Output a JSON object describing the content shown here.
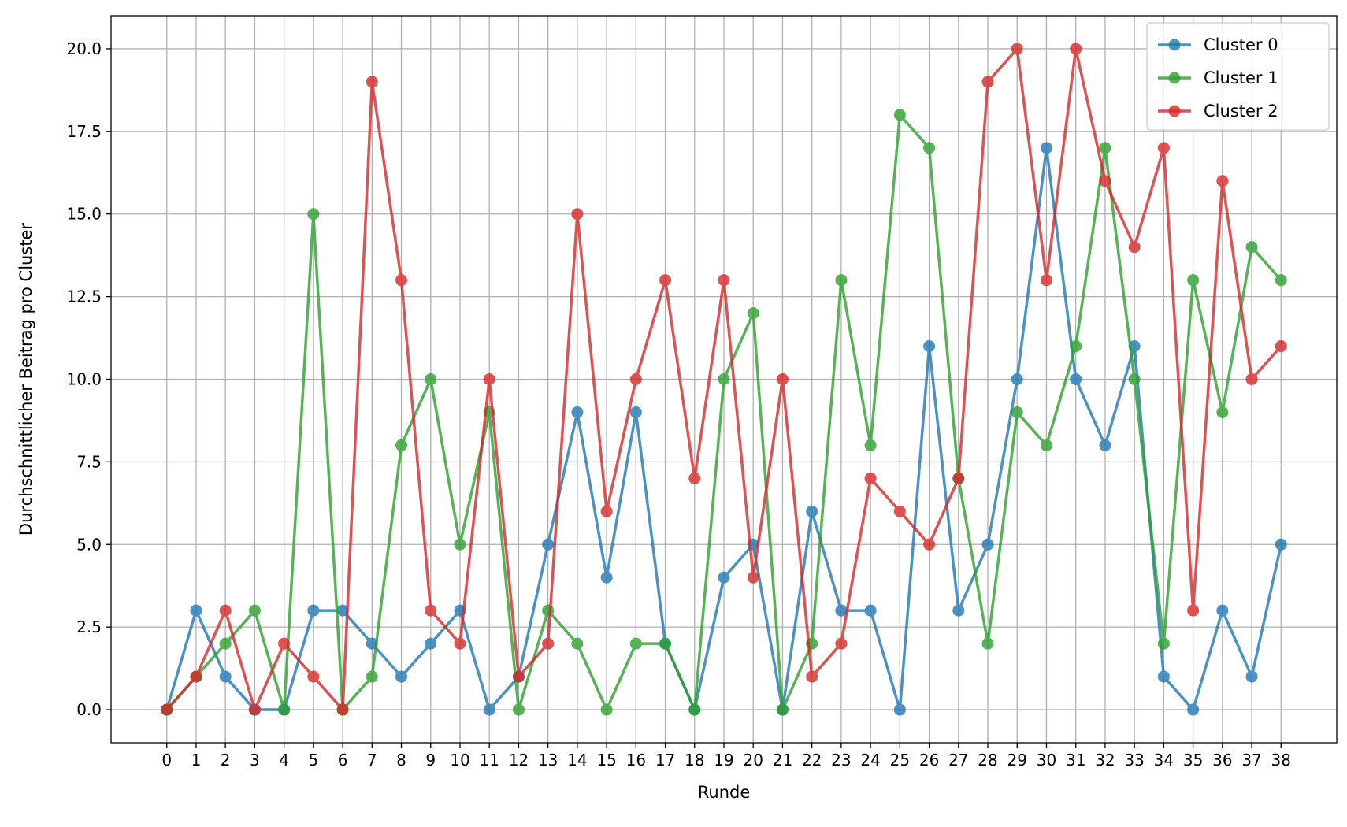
{
  "chart_data": {
    "type": "line",
    "title": "",
    "xlabel": "Runde",
    "ylabel": "Durchschnittlicher Beitrag pro Cluster",
    "x": [
      0,
      1,
      2,
      3,
      4,
      5,
      6,
      7,
      8,
      9,
      10,
      11,
      12,
      13,
      14,
      15,
      16,
      17,
      18,
      19,
      20,
      21,
      22,
      23,
      24,
      25,
      26,
      27,
      28,
      29,
      30,
      31,
      32,
      33,
      34,
      35,
      36,
      37,
      38
    ],
    "xlim": [
      -1.9,
      39.9
    ],
    "ylim": [
      -1.0,
      21.0
    ],
    "yticks": [
      0.0,
      2.5,
      5.0,
      7.5,
      10.0,
      12.5,
      15.0,
      17.5,
      20.0
    ],
    "grid": true,
    "legend_position": "top-right",
    "marker": "circle",
    "series": [
      {
        "name": "Cluster 0",
        "color": "#1f77b4",
        "values": [
          0,
          3,
          1,
          0,
          0,
          3,
          3,
          2,
          1,
          2,
          3,
          0,
          1,
          5,
          9,
          4,
          9,
          2,
          0,
          4,
          5,
          0,
          6,
          3,
          3,
          0,
          11,
          3,
          5,
          10,
          17,
          10,
          8,
          11,
          1,
          0,
          3,
          1,
          5
        ]
      },
      {
        "name": "Cluster 1",
        "color": "#2ca02c",
        "values": [
          0,
          1,
          2,
          3,
          0,
          15,
          0,
          1,
          8,
          10,
          5,
          9,
          0,
          3,
          2,
          0,
          2,
          2,
          0,
          10,
          12,
          0,
          2,
          13,
          8,
          18,
          17,
          7,
          2,
          9,
          8,
          11,
          17,
          10,
          2,
          13,
          9,
          14,
          13
        ]
      },
      {
        "name": "Cluster 2",
        "color": "#d62728",
        "values": [
          0,
          1,
          3,
          0,
          2,
          1,
          0,
          19,
          13,
          3,
          2,
          10,
          1,
          2,
          15,
          6,
          10,
          13,
          7,
          13,
          4,
          10,
          1,
          2,
          7,
          6,
          5,
          7,
          19,
          20,
          13,
          20,
          16,
          14,
          17,
          3,
          16,
          10,
          11
        ]
      }
    ]
  }
}
